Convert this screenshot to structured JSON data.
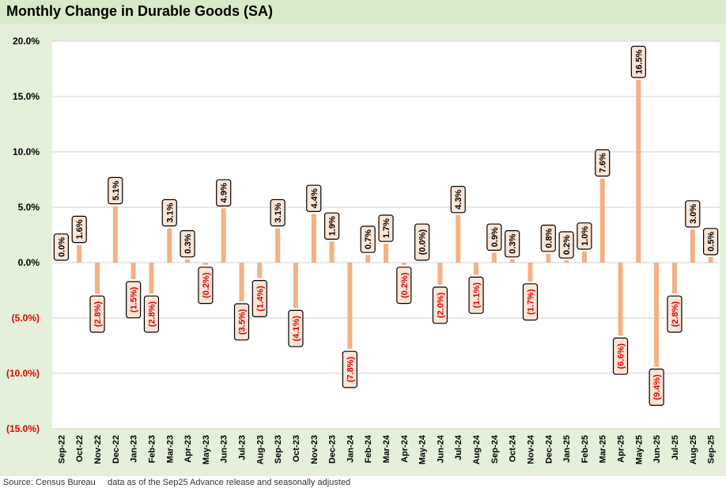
{
  "title": "Monthly Change in Durable Goods (SA)",
  "footer": {
    "source": "Source: Census Bureau",
    "note": "data as of the Sep25 Advance release and seasonally adjusted"
  },
  "colors": {
    "bar": "#f4b183",
    "negative_label": "#e00000",
    "positive_label": "#000000",
    "label_fill": "#fbe5d6",
    "grid": "#d0d0d0",
    "title_bg": "#d8ebc9",
    "outer_bg": "#e4f0d9"
  },
  "chart_data": {
    "type": "bar",
    "title": "Monthly Change in Durable Goods (SA)",
    "xlabel": "",
    "ylabel": "",
    "ylim": [
      -15,
      20
    ],
    "yticks": [
      20,
      15,
      10,
      5,
      0,
      -5,
      -10,
      -15
    ],
    "ytick_labels": [
      "20.0%",
      "15.0%",
      "10.0%",
      "5.0%",
      "0.0%",
      "(5.0%)",
      "(10.0%)",
      "(15.0%)"
    ],
    "grid": true,
    "categories": [
      "Sep-22",
      "Oct-22",
      "Nov-22",
      "Dec-22",
      "Jan-23",
      "Feb-23",
      "Mar-23",
      "Apr-23",
      "May-23",
      "Jun-23",
      "Jul-23",
      "Aug-23",
      "Sep-23",
      "Oct-23",
      "Nov-23",
      "Dec-23",
      "Jan-24",
      "Feb-24",
      "Mar-24",
      "Apr-24",
      "May-24",
      "Jun-24",
      "Jul-24",
      "Aug-24",
      "Sep-24",
      "Oct-24",
      "Nov-24",
      "Dec-24",
      "Jan-25",
      "Feb-25",
      "Mar-25",
      "Apr-25",
      "May-25",
      "Jun-25",
      "Jul-25",
      "Aug-25",
      "Sep-25"
    ],
    "values": [
      0.0,
      1.6,
      -2.8,
      5.1,
      -1.5,
      -2.8,
      3.1,
      0.3,
      -0.2,
      4.9,
      -3.5,
      -1.4,
      3.1,
      -4.1,
      4.4,
      1.9,
      -7.8,
      0.7,
      1.7,
      -0.2,
      0.0,
      -2.0,
      4.3,
      -1.1,
      0.9,
      0.3,
      -1.7,
      0.8,
      0.2,
      1.0,
      7.6,
      -6.6,
      16.5,
      -9.4,
      -2.8,
      3.0,
      0.5
    ],
    "data_labels": [
      "0.0%",
      "1.6%",
      "(2.8%)",
      "5.1%",
      "(1.5%)",
      "(2.8%)",
      "3.1%",
      "0.3%",
      "(0.2%)",
      "4.9%",
      "(3.5%)",
      "(1.4%)",
      "3.1%",
      "(4.1%)",
      "4.4%",
      "1.9%",
      "(7.8%)",
      "0.7%",
      "1.7%",
      "(0.2%)",
      "(0.0%)",
      "(2.0%)",
      "4.3%",
      "(1.1%)",
      "0.9%",
      "0.3%",
      "(1.7%)",
      "0.8%",
      "0.2%",
      "1.0%",
      "7.6%",
      "(6.6%)",
      "16.5%",
      "(9.4%)",
      "(2.8%)",
      "3.0%",
      "0.5%"
    ]
  }
}
